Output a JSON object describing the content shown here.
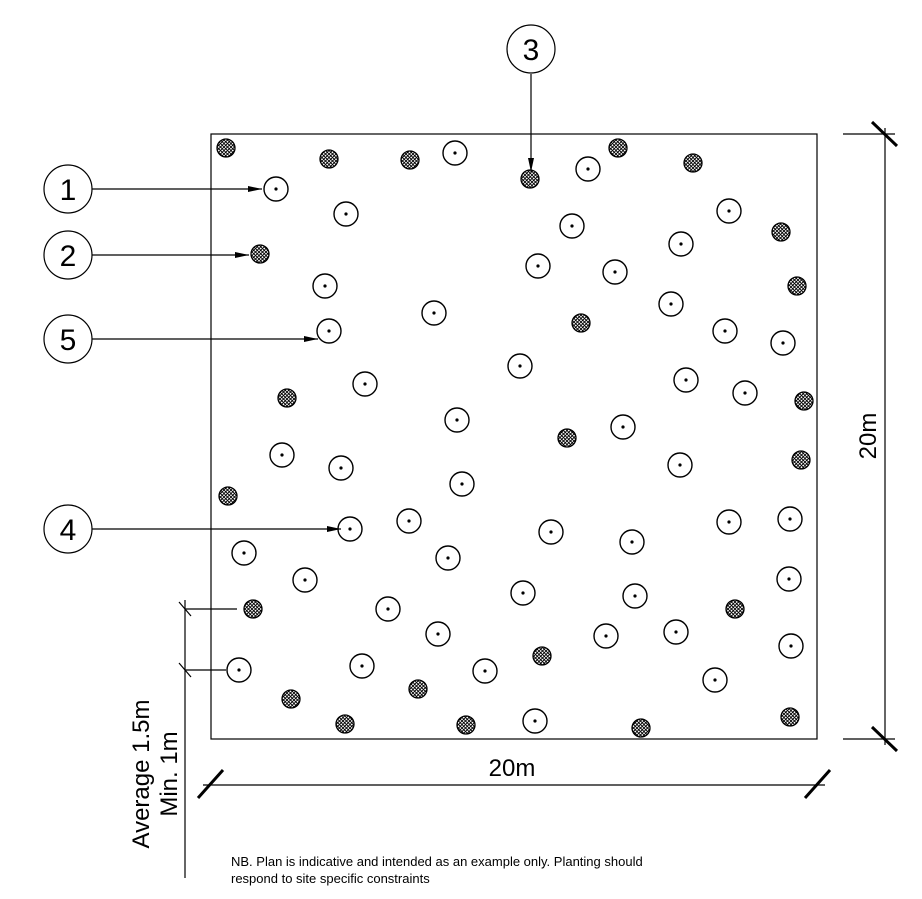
{
  "callouts": [
    {
      "number": "1",
      "meaning": "open-tree-symbol"
    },
    {
      "number": "2",
      "meaning": "hatched-shrub-symbol"
    },
    {
      "number": "3",
      "meaning": "hatched-shrub-symbol"
    },
    {
      "number": "5",
      "meaning": "open-tree-symbol"
    },
    {
      "number": "4",
      "meaning": "open-tree-symbol"
    }
  ],
  "dimensions": {
    "width": "20m",
    "height": "20m",
    "spacing_average": "Average 1.5m",
    "spacing_min": "Min. 1m"
  },
  "note": {
    "line1": "NB. Plan is indicative and intended as an example only. Planting should",
    "line2": "respond to site specific constraints"
  },
  "symbols": {
    "open": "open circle with centre dot",
    "hatched": "cross-hatched filled circle"
  },
  "colors": {
    "line": "#000000",
    "background": "#ffffff"
  }
}
